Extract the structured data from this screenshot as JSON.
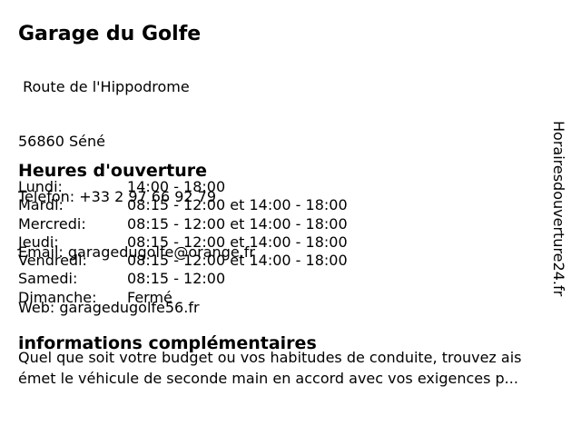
{
  "page": {
    "background_color": "#ffffff",
    "text_color": "#000000"
  },
  "brand": {
    "vertical_watermark": "Horairesdouverture24.fr"
  },
  "business": {
    "name": "Garage du Golfe",
    "address_line1": " Route de l'Hippodrome",
    "address_line2": "56860 Séné",
    "phone_line": "Telefon: +33 2 97 66 92 79",
    "email_line": "Email: garagedugolfe@orange.fr",
    "web_line": "Web: garagedugolfe56.fr"
  },
  "hours": {
    "heading": "Heures d'ouverture",
    "rows": [
      {
        "day": "Lundi:",
        "time": "14:00 - 18:00"
      },
      {
        "day": "Mardi:",
        "time": "08:15 - 12:00 et 14:00 - 18:00"
      },
      {
        "day": "Mercredi:",
        "time": "08:15 - 12:00 et 14:00 - 18:00"
      },
      {
        "day": "Jeudi:",
        "time": "08:15 - 12:00 et 14:00 - 18:00"
      },
      {
        "day": "Vendredi:",
        "time": "08:15 - 12:00 et 14:00 - 18:00"
      },
      {
        "day": "Samedi:",
        "time": "08:15 - 12:00"
      },
      {
        "day": "Dimanche:",
        "time": "Fermé"
      }
    ]
  },
  "info": {
    "heading": "informations complémentaires",
    "text": "Quel que soit votre budget ou vos habitudes de conduite, trouvez ais\német le véhicule de seconde main en accord avec vos exigences p..."
  }
}
